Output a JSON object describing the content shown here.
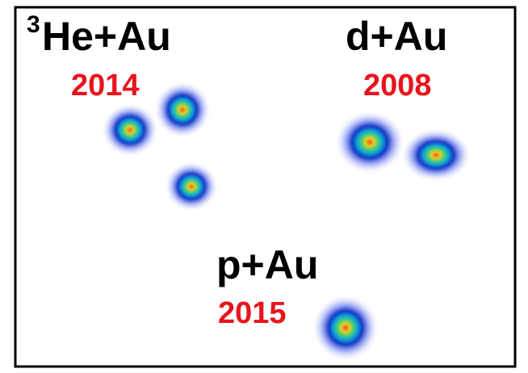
{
  "panels": [
    {
      "superscript": "3",
      "system": "He+Au",
      "year": "2014"
    },
    {
      "system": "d+Au",
      "year": "2008"
    },
    {
      "system": "p+Au",
      "year": "2015"
    }
  ]
}
